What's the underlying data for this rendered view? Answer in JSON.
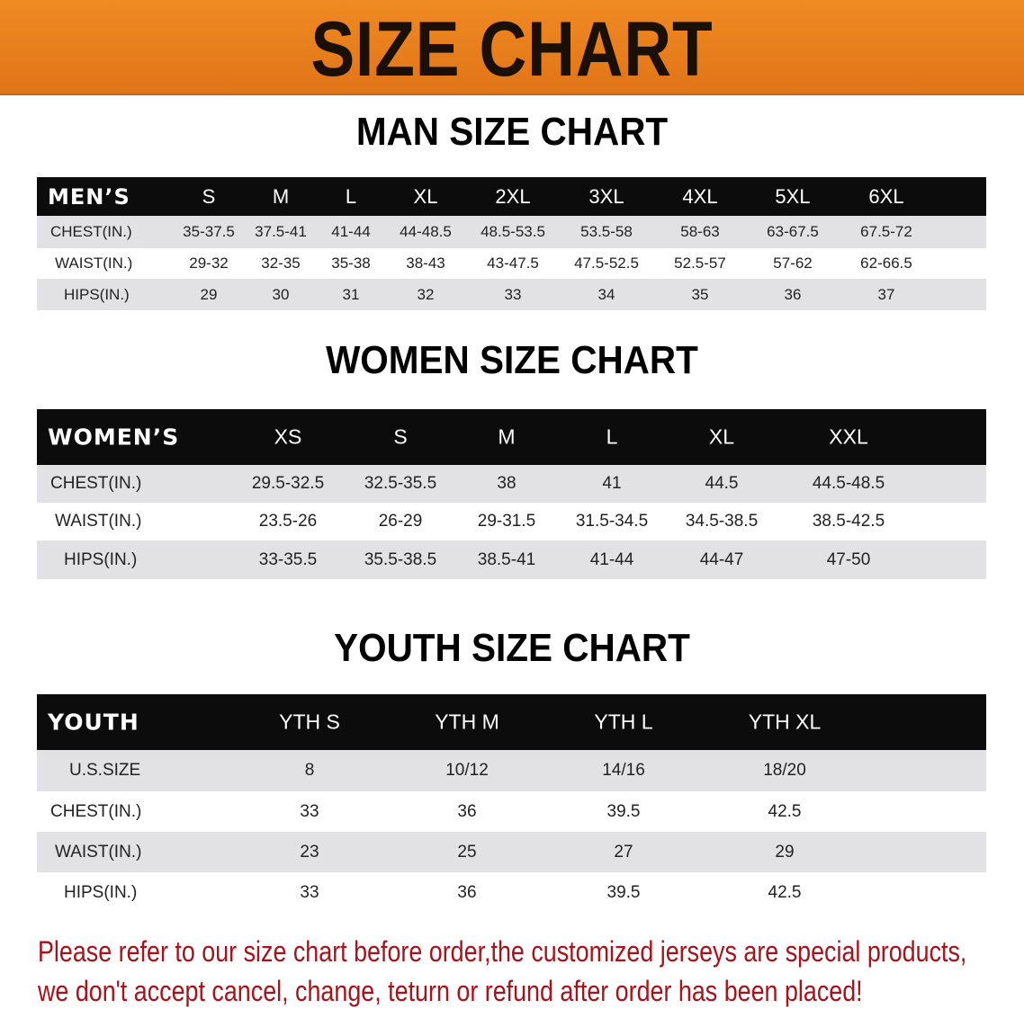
{
  "banner_title": "SIZE CHART",
  "colors": {
    "banner": "#e8801e",
    "header_row": "#0c0c0c",
    "stripe": "#e2e2e4",
    "note": "#a8121a"
  },
  "men": {
    "title": "MAN SIZE CHART",
    "header": [
      "MEN’S",
      "S",
      "M",
      "L",
      "XL",
      "2XL",
      "3XL",
      "4XL",
      "5XL",
      "6XL"
    ],
    "rows": [
      [
        "CHEST(IN.)",
        "35-37.5",
        "37.5-41",
        "41-44",
        "44-48.5",
        "48.5-53.5",
        "53.5-58",
        "58-63",
        "63-67.5",
        "67.5-72"
      ],
      [
        "WAIST(IN.)",
        "29-32",
        "32-35",
        "35-38",
        "38-43",
        "43-47.5",
        "47.5-52.5",
        "52.5-57",
        "57-62",
        "62-66.5"
      ],
      [
        "HIPS(IN.)",
        "29",
        "30",
        "31",
        "32",
        "33",
        "34",
        "35",
        "36",
        "37"
      ]
    ]
  },
  "women": {
    "title": "WOMEN SIZE CHART",
    "header": [
      "WOMEN’S",
      "XS",
      "S",
      "M",
      "L",
      "XL",
      "XXL"
    ],
    "rows": [
      [
        "CHEST(IN.)",
        "29.5-32.5",
        "32.5-35.5",
        "38",
        "41",
        "44.5",
        "44.5-48.5"
      ],
      [
        "WAIST(IN.)",
        "23.5-26",
        "26-29",
        "29-31.5",
        "31.5-34.5",
        "34.5-38.5",
        "38.5-42.5"
      ],
      [
        "HIPS(IN.)",
        "33-35.5",
        "35.5-38.5",
        "38.5-41",
        "41-44",
        "44-47",
        "47-50"
      ]
    ]
  },
  "youth": {
    "title": "YOUTH SIZE CHART",
    "header": [
      "YOUTH",
      "YTH S",
      "YTH M",
      "YTH L",
      "YTH XL"
    ],
    "rows": [
      [
        "U.S.SIZE",
        "8",
        "10/12",
        "14/16",
        "18/20"
      ],
      [
        "CHEST(IN.)",
        "33",
        "36",
        "39.5",
        "42.5"
      ],
      [
        "WAIST(IN.)",
        "23",
        "25",
        "27",
        "29"
      ],
      [
        "HIPS(IN.)",
        "33",
        "36",
        "39.5",
        "42.5"
      ]
    ]
  },
  "note": {
    "line1": "Please refer to our size chart before order,the customized jerseys are special products,",
    "line2": "we don't accept cancel, change, teturn or refund after order has been placed!"
  }
}
